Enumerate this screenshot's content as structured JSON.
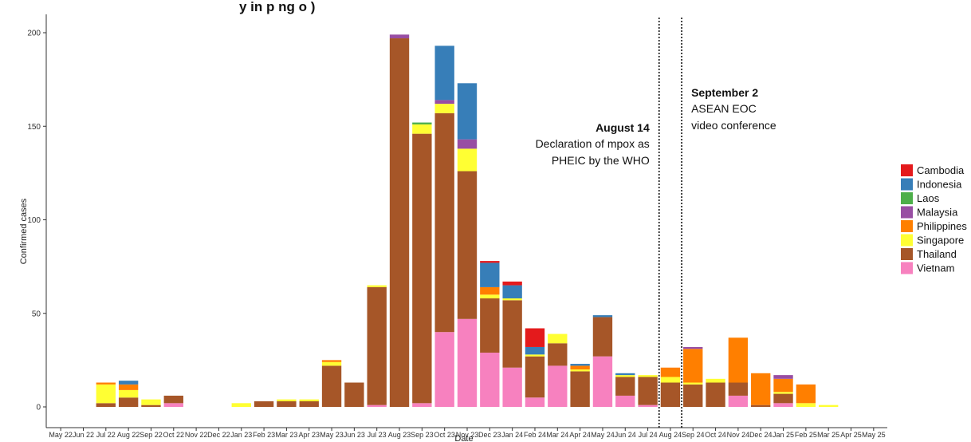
{
  "chart_data": {
    "type": "bar",
    "stacked": true,
    "title": "y    in    p      ng        o                                        )",
    "xlabel": "Date",
    "ylabel": "Confirmed cases",
    "ylim": [
      0,
      210
    ],
    "yticks": [
      0,
      50,
      100,
      150,
      200
    ],
    "grid": false,
    "legend_position": "right",
    "categories": [
      "May 22",
      "Jun 22",
      "Jul 22",
      "Aug 22",
      "Sep 22",
      "Oct 22",
      "Nov 22",
      "Dec 22",
      "Jan 23",
      "Feb 23",
      "Mar 23",
      "Apr 23",
      "May 23",
      "Jun 23",
      "Jul 23",
      "Aug 23",
      "Sep 23",
      "Oct 23",
      "Nov 23",
      "Dec 23",
      "Jan 24",
      "Feb 24",
      "Mar 24",
      "Apr 24",
      "May 24",
      "Jun 24",
      "Jul 24",
      "Aug 24",
      "Sep 24",
      "Oct 24",
      "Nov 24",
      "Dec 24",
      "Jan 25",
      "Feb 25",
      "Mar 25",
      "Apr 25",
      "May 25"
    ],
    "series": [
      {
        "name": "Vietnam",
        "color": "#f781bf",
        "values": [
          0,
          0,
          0,
          0,
          0,
          2,
          0,
          0,
          0,
          0,
          0,
          0,
          0,
          0,
          1,
          0,
          2,
          40,
          47,
          29,
          21,
          5,
          22,
          0,
          27,
          6,
          1,
          0,
          0,
          0,
          6,
          0,
          2,
          0,
          0,
          0,
          0
        ]
      },
      {
        "name": "Thailand",
        "color": "#a65628",
        "values": [
          0,
          0,
          2,
          5,
          1,
          4,
          0,
          0,
          0,
          3,
          3,
          3,
          22,
          13,
          63,
          197,
          144,
          117,
          79,
          29,
          36,
          22,
          12,
          19,
          21,
          10,
          15,
          13,
          12,
          13,
          7,
          1,
          5,
          0,
          0,
          0,
          0
        ]
      },
      {
        "name": "Singapore",
        "color": "#ffff33",
        "values": [
          0,
          0,
          10,
          4,
          3,
          0,
          0,
          0,
          2,
          0,
          1,
          1,
          2,
          0,
          1,
          0,
          5,
          5,
          12,
          2,
          1,
          1,
          5,
          1,
          0,
          1,
          1,
          3,
          1,
          2,
          0,
          0,
          1,
          2,
          1,
          0,
          0
        ]
      },
      {
        "name": "Philippines",
        "color": "#ff7f00",
        "values": [
          0,
          0,
          1,
          3,
          0,
          0,
          0,
          0,
          0,
          0,
          0,
          0,
          1,
          0,
          0,
          0,
          0,
          0,
          0,
          4,
          0,
          0,
          0,
          2,
          0,
          0,
          0,
          5,
          18,
          0,
          24,
          17,
          7,
          10,
          0,
          0,
          0
        ]
      },
      {
        "name": "Malaysia",
        "color": "#984ea3",
        "values": [
          0,
          0,
          0,
          0,
          0,
          0,
          0,
          0,
          0,
          0,
          0,
          0,
          0,
          0,
          0,
          2,
          0,
          2,
          5,
          0,
          0,
          0,
          0,
          0,
          0,
          0,
          0,
          0,
          1,
          0,
          0,
          0,
          2,
          0,
          0,
          0,
          0
        ]
      },
      {
        "name": "Laos",
        "color": "#4daf4a",
        "values": [
          0,
          0,
          0,
          0,
          0,
          0,
          0,
          0,
          0,
          0,
          0,
          0,
          0,
          0,
          0,
          0,
          1,
          0,
          0,
          0,
          0,
          0,
          0,
          0,
          0,
          0,
          0,
          0,
          0,
          0,
          0,
          0,
          0,
          0,
          0,
          0,
          0
        ]
      },
      {
        "name": "Indonesia",
        "color": "#377eb8",
        "values": [
          0,
          0,
          0,
          2,
          0,
          0,
          0,
          0,
          0,
          0,
          0,
          0,
          0,
          0,
          0,
          0,
          0,
          29,
          30,
          13,
          7,
          4,
          0,
          1,
          1,
          1,
          0,
          0,
          0,
          0,
          0,
          0,
          0,
          0,
          0,
          0,
          0
        ]
      },
      {
        "name": "Cambodia",
        "color": "#e41a1c",
        "values": [
          0,
          0,
          0,
          0,
          0,
          0,
          0,
          0,
          0,
          0,
          0,
          0,
          0,
          0,
          0,
          0,
          0,
          0,
          0,
          1,
          2,
          10,
          0,
          0,
          0,
          0,
          0,
          0,
          0,
          0,
          0,
          0,
          0,
          0,
          0,
          0,
          0
        ]
      }
    ],
    "legend_order": [
      "Cambodia",
      "Indonesia",
      "Laos",
      "Malaysia",
      "Philippines",
      "Singapore",
      "Thailand",
      "Vietnam"
    ],
    "annotations": [
      {
        "x": "Aug 24",
        "title": "August 14",
        "lines": [
          "Declaration of mpox as",
          "PHEIC by the WHO"
        ]
      },
      {
        "x": "Sep 24",
        "title": "September 2",
        "lines": [
          "ASEAN EOC",
          "video conference"
        ]
      }
    ]
  }
}
